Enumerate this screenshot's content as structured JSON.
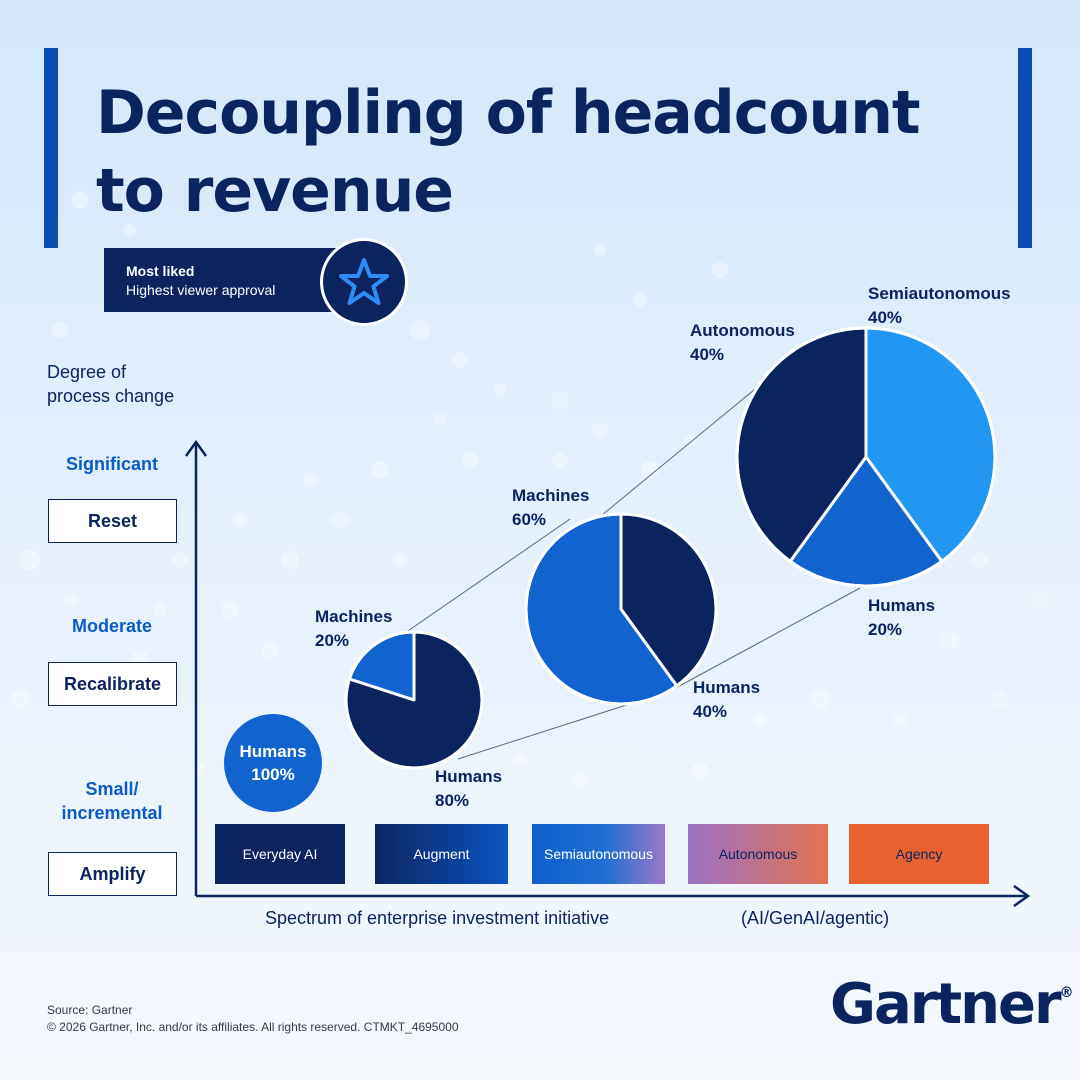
{
  "title": "Decoupling of headcount to revenue",
  "badge": {
    "line1": "Most liked",
    "line2": "Highest viewer approval",
    "icon": "star-icon"
  },
  "y_axis": {
    "label_line1": "Degree of",
    "label_line2": "process change",
    "levels": [
      {
        "degree": "Significant",
        "action": "Reset"
      },
      {
        "degree": "Moderate",
        "action": "Recalibrate"
      },
      {
        "degree_line1": "Small/",
        "degree_line2": "incremental",
        "action": "Amplify"
      }
    ]
  },
  "x_axis": {
    "label": "Spectrum of enterprise investment initiative",
    "label_suffix": "(AI/GenAI/agentic)"
  },
  "categories": [
    {
      "label": "Everyday AI",
      "color": "#0b2460"
    },
    {
      "label": "Augment",
      "color": "#0b2460"
    },
    {
      "label": "Semiautonomous",
      "color": "#1164d0"
    },
    {
      "label": "Autonomous",
      "color": "#9a72c5"
    },
    {
      "label": "Agency",
      "color": "#e8622f"
    }
  ],
  "chart_data": {
    "type": "pie",
    "title": "Decoupling of headcount to revenue",
    "xlabel": "Spectrum of enterprise investment initiative (AI/GenAI/agentic)",
    "ylabel": "Degree of process change",
    "pies": [
      {
        "slices": [
          {
            "label": "Humans",
            "value": 100,
            "display": "100%",
            "color": "#1164d0"
          }
        ]
      },
      {
        "slices": [
          {
            "label": "Machines",
            "value": 20,
            "display": "20%",
            "color": "#1164d0"
          },
          {
            "label": "Humans",
            "value": 80,
            "display": "80%",
            "color": "#0b2460"
          }
        ]
      },
      {
        "slices": [
          {
            "label": "Machines",
            "value": 60,
            "display": "60%",
            "color": "#1164d0"
          },
          {
            "label": "Humans",
            "value": 40,
            "display": "40%",
            "color": "#0b2460"
          }
        ]
      },
      {
        "slices": [
          {
            "label": "Semiautonomous",
            "value": 40,
            "display": "40%",
            "color": "#2196f3"
          },
          {
            "label": "Humans",
            "value": 20,
            "display": "20%",
            "color": "#1164d0"
          },
          {
            "label": "Autonomous",
            "value": 40,
            "display": "40%",
            "color": "#0b2460"
          }
        ]
      }
    ]
  },
  "footer": {
    "source": "Source: Gartner",
    "copyright": "© 2026 Gartner, Inc. and/or its affiliates. All rights reserved. CTMKT_4695000",
    "logo": "Gartner",
    "logo_mark": "®"
  }
}
